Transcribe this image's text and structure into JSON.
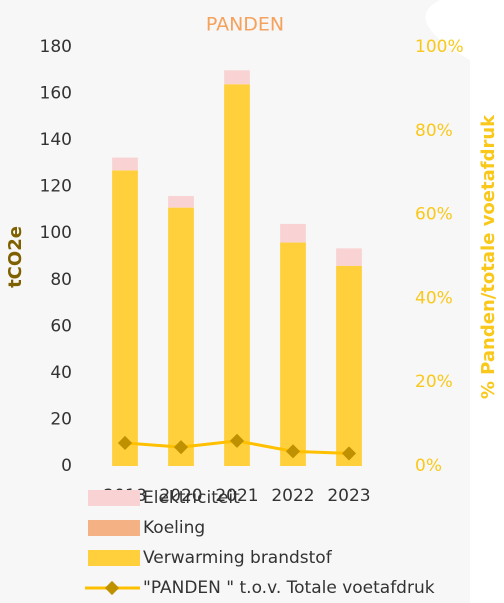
{
  "chart_data": {
    "type": "bar",
    "stacked": true,
    "title": "PANDEN",
    "ylabel": "tCO2e",
    "y2label": "% Panden/totale voetafdruk",
    "categories": [
      "2018",
      "2020",
      "2021",
      "2022",
      "2023"
    ],
    "series": [
      {
        "name": "Elektriciteit",
        "color": "#f9d3d3",
        "type": "bar",
        "values": [
          5.5,
          5,
          6,
          8,
          7.5
        ]
      },
      {
        "name": "Koeling",
        "color": "#f4b183",
        "type": "bar",
        "values": [
          0,
          0,
          0,
          0,
          0
        ]
      },
      {
        "name": "Verwarming brandstof",
        "color": "#ffd03c",
        "type": "bar",
        "values": [
          127,
          111,
          164,
          96,
          86
        ]
      },
      {
        "name": "\"PANDEN \" t.o.v. Totale voetafdruk",
        "color": "#ffc000",
        "marker_color": "#bf9000",
        "type": "line",
        "axis": "y2",
        "values": [
          5.5,
          4.5,
          6,
          3.5,
          3
        ]
      }
    ],
    "ylim": [
      0,
      180
    ],
    "yticks": [
      0,
      20,
      40,
      60,
      80,
      100,
      120,
      140,
      160,
      180
    ],
    "y2lim": [
      0,
      100
    ],
    "y2ticks": [
      {
        "value": 0,
        "label": "0%"
      },
      {
        "value": 20,
        "label": "20%"
      },
      {
        "value": 40,
        "label": "40%"
      },
      {
        "value": 60,
        "label": "60%"
      },
      {
        "value": 80,
        "label": "80%"
      },
      {
        "value": 100,
        "label": "100%"
      }
    ],
    "grid": false
  }
}
